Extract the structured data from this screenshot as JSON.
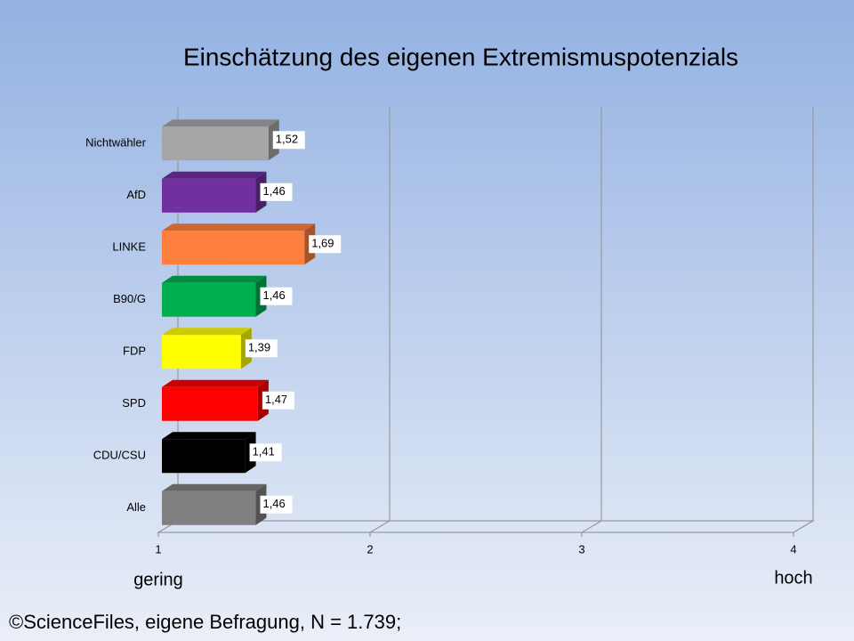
{
  "chart_data": {
    "type": "bar",
    "orientation": "horizontal",
    "title": "Einschätzung des eigenen Extremismuspotenzials",
    "categories": [
      "Nichtwähler",
      "AfD",
      "LINKE",
      "B90/G",
      "FDP",
      "SPD",
      "CDU/CSU",
      "Alle"
    ],
    "values": [
      1.52,
      1.46,
      1.69,
      1.46,
      1.39,
      1.47,
      1.41,
      1.46
    ],
    "value_labels": [
      "1,52",
      "1,46",
      "1,69",
      "1,46",
      "1,39",
      "1,47",
      "1,41",
      "1,46"
    ],
    "colors": [
      "#a6a6a6",
      "#7030a0",
      "#ff7f3f",
      "#00b050",
      "#ffff00",
      "#ff0000",
      "#000000",
      "#808080"
    ],
    "xlim": [
      1,
      4
    ],
    "xticks": [
      1,
      2,
      3,
      4
    ],
    "grid": true,
    "x_low_label": "gering",
    "x_high_label": "hoch",
    "footer": "©ScienceFiles, eigene Befragung, N = 1.739;"
  }
}
